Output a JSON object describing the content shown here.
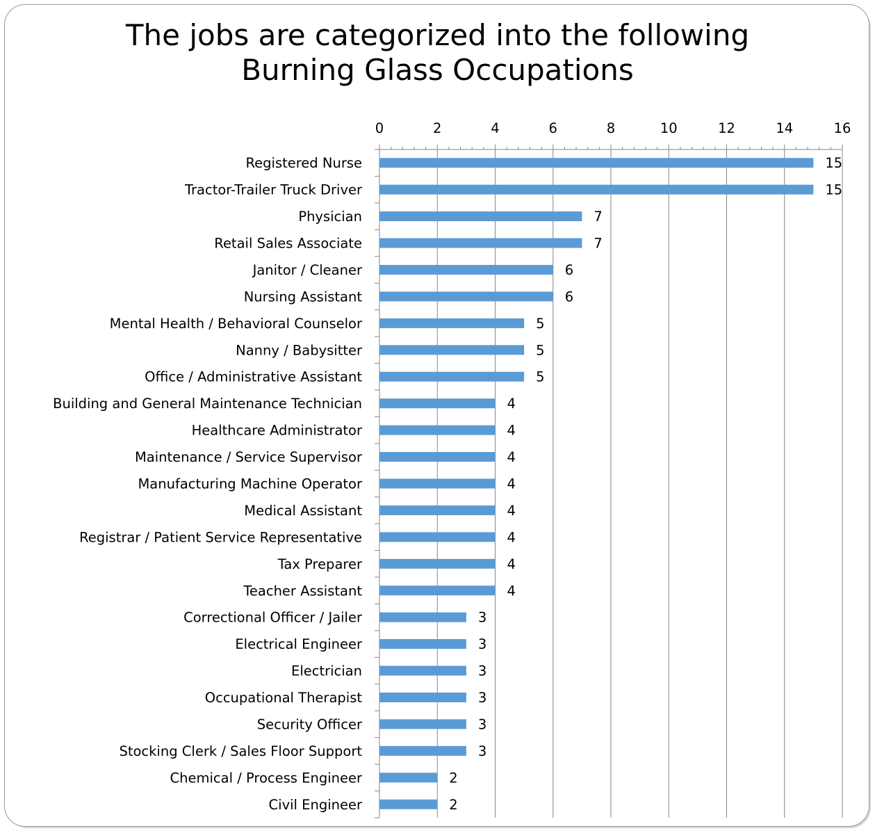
{
  "chart_data": {
    "type": "bar",
    "orientation": "horizontal",
    "title_lines": [
      "The jobs are categorized into the following",
      "Burning Glass Occupations"
    ],
    "xlim": [
      0,
      16
    ],
    "x_ticks": [
      0,
      2,
      4,
      6,
      8,
      10,
      12,
      14,
      16
    ],
    "x_axis_position": "top",
    "gridlines": "vertical",
    "bar_color": "#5b9bd5",
    "data_labels": true,
    "categories": [
      "Registered Nurse",
      "Tractor-Trailer Truck Driver",
      "Physician",
      "Retail Sales Associate",
      "Janitor / Cleaner",
      "Nursing Assistant",
      "Mental Health / Behavioral Counselor",
      "Nanny / Babysitter",
      "Office / Administrative Assistant",
      "Building and General Maintenance Technician",
      "Healthcare Administrator",
      "Maintenance / Service Supervisor",
      "Manufacturing Machine Operator",
      "Medical Assistant",
      "Registrar / Patient Service Representative",
      "Tax Preparer",
      "Teacher Assistant",
      "Correctional Officer / Jailer",
      "Electrical Engineer",
      "Electrician",
      "Occupational Therapist",
      "Security Officer",
      "Stocking Clerk / Sales Floor Support",
      "Chemical / Process Engineer",
      "Civil Engineer"
    ],
    "values": [
      15,
      15,
      7,
      7,
      6,
      6,
      5,
      5,
      5,
      4,
      4,
      4,
      4,
      4,
      4,
      4,
      4,
      3,
      3,
      3,
      3,
      3,
      3,
      2,
      2
    ]
  }
}
